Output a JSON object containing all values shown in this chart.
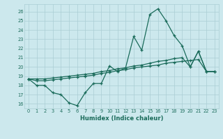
{
  "xlabel": "Humidex (Indice chaleur)",
  "bg_color": "#cce8ed",
  "line_color": "#1a6b5a",
  "grid_color": "#aacdd4",
  "ylim": [
    15.5,
    26.8
  ],
  "xlim": [
    -0.5,
    23.5
  ],
  "yticks": [
    16,
    17,
    18,
    19,
    20,
    21,
    22,
    23,
    24,
    25,
    26
  ],
  "xticks": [
    0,
    1,
    2,
    3,
    4,
    5,
    6,
    7,
    8,
    9,
    10,
    11,
    12,
    13,
    14,
    15,
    16,
    17,
    18,
    19,
    20,
    21,
    22,
    23
  ],
  "series1_x": [
    0,
    1,
    2,
    3,
    4,
    5,
    6,
    7,
    8,
    9,
    10,
    11,
    12,
    13,
    14,
    15,
    16,
    17,
    18,
    19,
    20,
    21,
    22,
    23
  ],
  "series1_y": [
    18.7,
    18.0,
    18.0,
    17.2,
    17.0,
    16.1,
    15.8,
    17.2,
    18.2,
    18.2,
    20.1,
    19.5,
    19.9,
    23.3,
    21.8,
    25.7,
    26.3,
    25.0,
    23.4,
    22.3,
    20.0,
    21.7,
    19.5,
    19.5
  ],
  "series2_x": [
    0,
    1,
    2,
    3,
    4,
    5,
    6,
    7,
    8,
    9,
    10,
    11,
    12,
    13,
    14,
    15,
    16,
    17,
    18,
    19,
    20,
    21,
    22,
    23
  ],
  "series2_y": [
    18.7,
    18.7,
    18.7,
    18.8,
    18.9,
    19.0,
    19.1,
    19.2,
    19.3,
    19.5,
    19.6,
    19.8,
    19.9,
    20.1,
    20.2,
    20.4,
    20.6,
    20.7,
    20.9,
    21.0,
    20.0,
    21.7,
    19.5,
    19.5
  ],
  "series3_x": [
    0,
    1,
    2,
    3,
    4,
    5,
    6,
    7,
    8,
    9,
    10,
    11,
    12,
    13,
    14,
    15,
    16,
    17,
    18,
    19,
    20,
    21,
    22,
    23
  ],
  "series3_y": [
    18.7,
    18.5,
    18.5,
    18.6,
    18.7,
    18.8,
    18.9,
    19.0,
    19.1,
    19.3,
    19.4,
    19.6,
    19.7,
    19.9,
    20.0,
    20.1,
    20.2,
    20.4,
    20.5,
    20.6,
    20.7,
    20.8,
    19.5,
    19.5
  ]
}
